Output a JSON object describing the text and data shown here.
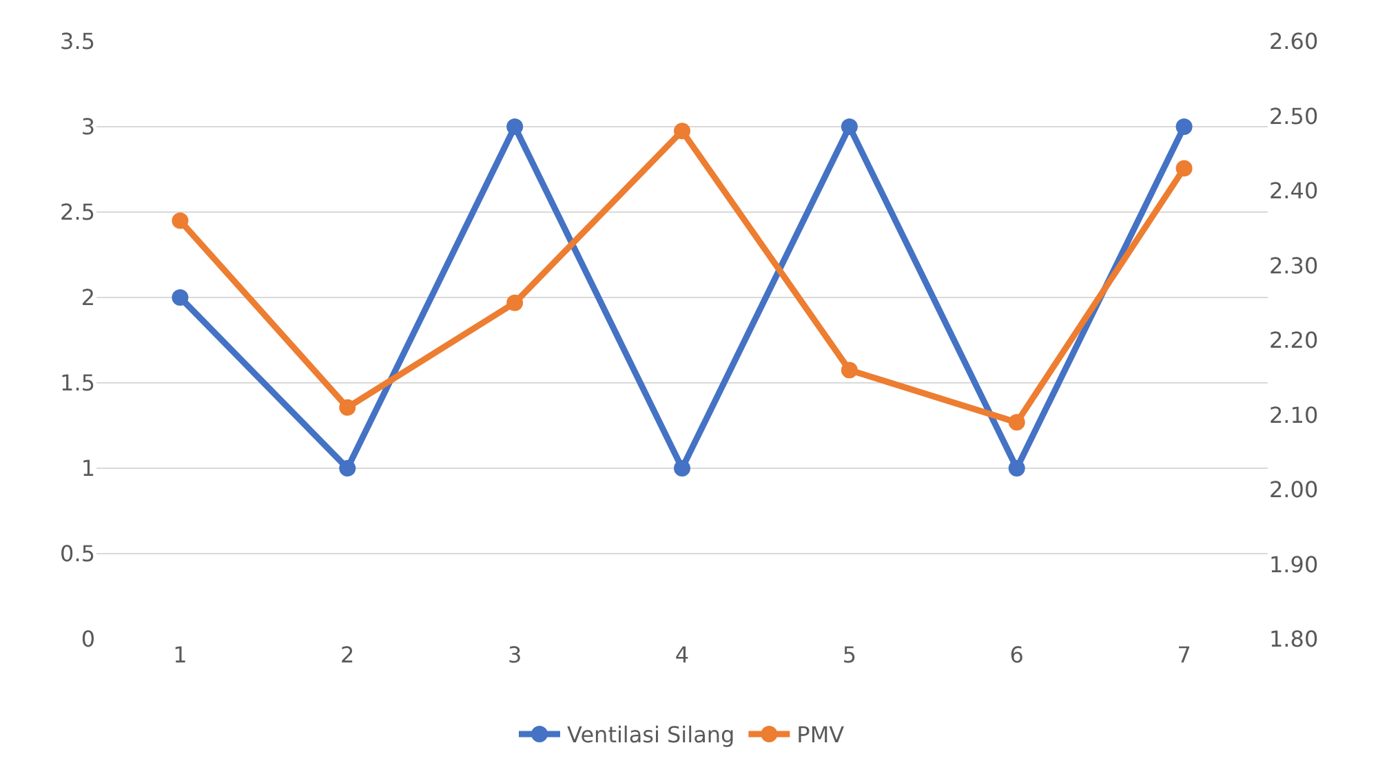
{
  "chart_data": {
    "type": "line",
    "x": [
      1,
      2,
      3,
      4,
      5,
      6,
      7
    ],
    "xlim": [
      0.5,
      7.5
    ],
    "xticks": [
      1,
      2,
      3,
      4,
      5,
      6,
      7
    ],
    "series": [
      {
        "name": "Ventilasi Silang",
        "color": "#4472c4",
        "values": [
          2,
          1,
          3,
          1,
          3,
          1,
          3
        ]
      },
      {
        "name": "PMV",
        "color": "#ed7d31",
        "axis": "y2",
        "values": [
          2.36,
          2.11,
          2.25,
          2.48,
          2.16,
          2.09,
          2.43
        ]
      }
    ],
    "ylim": [
      0,
      3.5
    ],
    "yticks": [
      0,
      0.5,
      1,
      1.5,
      2,
      2.5,
      3,
      3.5
    ],
    "y2lim": [
      1.8,
      2.6
    ],
    "y2ticks": [
      {
        "value": 1.8,
        "label": "1.80"
      },
      {
        "value": 1.9,
        "label": "1.90"
      },
      {
        "value": 2.0,
        "label": "2.00"
      },
      {
        "value": 2.1,
        "label": "2.10"
      },
      {
        "value": 2.2,
        "label": "2.20"
      },
      {
        "value": 2.3,
        "label": "2.30"
      },
      {
        "value": 2.4,
        "label": "2.40"
      },
      {
        "value": 2.5,
        "label": "2.50"
      },
      {
        "value": 2.6,
        "label": "2.60"
      }
    ],
    "grid": "y",
    "legend": "bottom",
    "marker": "circle",
    "line_style": "solid"
  }
}
